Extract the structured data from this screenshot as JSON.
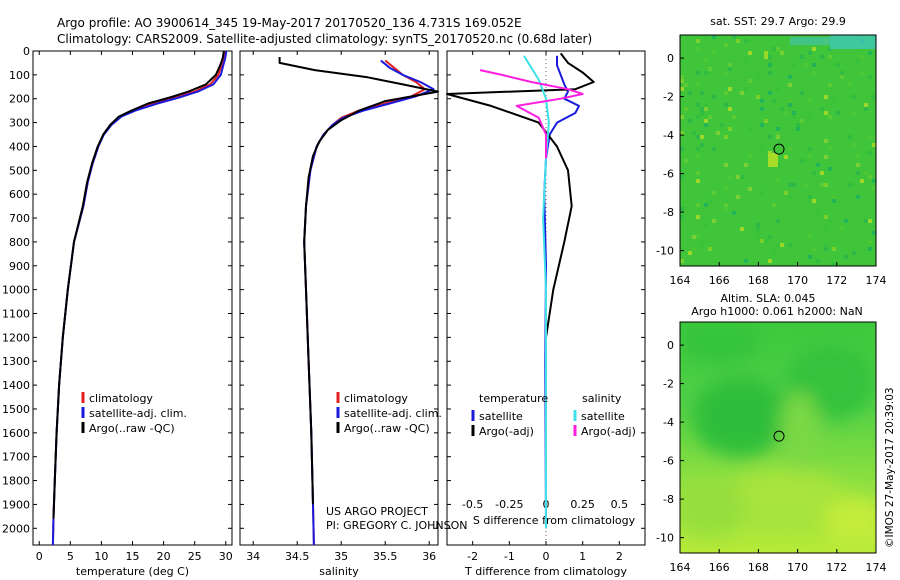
{
  "header": {
    "line1": "Argo profile: AO 3900614_345 19-May-2017 20170520_136 4.731S 169.052E",
    "line2": "Climatology: CARS2009. Satellite-adjusted climatology: synTS_20170520.nc (0.68d later)"
  },
  "colors": {
    "climatology": "#e02020",
    "satellite": "#1a1adf",
    "argo": "#000000",
    "sat_cyan": "#40e0e8",
    "argo_magenta": "#ff1ee0"
  },
  "chart_data": [
    {
      "type": "line",
      "panel": "temperature",
      "xlabel": "temperature (deg C)",
      "xlim": [
        -1,
        31
      ],
      "xticks": [
        0,
        5,
        10,
        15,
        20,
        25,
        30
      ],
      "ylim": [
        2070,
        0
      ],
      "yticks": [
        0,
        100,
        200,
        300,
        400,
        500,
        600,
        700,
        800,
        900,
        1000,
        1100,
        1200,
        1300,
        1400,
        1500,
        1600,
        1700,
        1800,
        1900,
        2000
      ],
      "legend": [
        "climatology",
        "satellite-adj. clim.",
        "Argo(..raw -QC)"
      ],
      "series": [
        {
          "name": "climatology",
          "color": "#e02020",
          "x": [
            29.8,
            29.6,
            29.3,
            28.8,
            27.5,
            25.0,
            22.0,
            18.5,
            15.0,
            13.0,
            11.5,
            10.3,
            9.5,
            8.6,
            7.8,
            7.1,
            5.6,
            4.6,
            3.8,
            3.2,
            2.8,
            2.5,
            2.3,
            2.2
          ],
          "y": [
            0,
            30,
            60,
            100,
            140,
            170,
            195,
            220,
            250,
            275,
            310,
            350,
            400,
            470,
            550,
            650,
            800,
            1000,
            1200,
            1400,
            1600,
            1800,
            1950,
            2070
          ]
        },
        {
          "name": "satellite-adj. clim.",
          "color": "#1a1adf",
          "x": [
            30.1,
            29.9,
            29.6,
            29.2,
            28.0,
            25.5,
            22.5,
            19.0,
            15.4,
            13.2,
            11.6,
            10.4,
            9.5,
            8.6,
            7.8,
            7.1,
            5.6,
            4.6,
            3.8,
            3.2,
            2.8,
            2.5,
            2.3,
            2.2
          ],
          "y": [
            0,
            30,
            60,
            100,
            140,
            170,
            195,
            220,
            250,
            275,
            310,
            350,
            400,
            470,
            550,
            650,
            800,
            1000,
            1200,
            1400,
            1600,
            1800,
            1950,
            2070
          ]
        },
        {
          "name": "Argo(..raw -QC)",
          "color": "#000000",
          "x": [
            29.7,
            29.5,
            29.1,
            28.4,
            26.8,
            24.0,
            21.0,
            17.5,
            14.8,
            12.8,
            11.4,
            10.3,
            9.4,
            8.5,
            7.7,
            7.0,
            5.6,
            4.6,
            3.8,
            3.2,
            2.8,
            2.5,
            2.3
          ],
          "y": [
            0,
            30,
            60,
            100,
            140,
            170,
            195,
            220,
            250,
            275,
            310,
            350,
            400,
            470,
            550,
            650,
            800,
            1000,
            1200,
            1400,
            1600,
            1800,
            1960
          ]
        }
      ]
    },
    {
      "type": "line",
      "panel": "salinity",
      "xlabel": "salinity",
      "xlim": [
        33.85,
        36.1
      ],
      "xticks": [
        34,
        34.5,
        35,
        35.5,
        36
      ],
      "xticklabels": [
        "34",
        "34.5",
        "35",
        "35.5",
        "36"
      ],
      "ylim": [
        2070,
        0
      ],
      "legend": [
        "climatology",
        "satellite-adj. clim.",
        "Argo(..raw -QC)"
      ],
      "series": [
        {
          "name": "climatology",
          "color": "#e02020",
          "x": [
            35.5,
            35.6,
            35.7,
            35.85,
            35.95,
            35.8,
            35.5,
            35.2,
            35.0,
            34.9,
            34.8,
            34.72,
            34.65,
            34.6,
            34.58,
            34.6,
            34.63,
            34.66,
            34.68,
            34.69
          ],
          "y": [
            40,
            70,
            100,
            130,
            160,
            190,
            220,
            250,
            280,
            310,
            350,
            400,
            500,
            650,
            800,
            1000,
            1300,
            1600,
            1900,
            2070
          ]
        },
        {
          "name": "satellite-adj. clim.",
          "color": "#1a1adf",
          "x": [
            35.45,
            35.55,
            35.7,
            35.9,
            36.05,
            35.85,
            35.55,
            35.25,
            35.02,
            34.9,
            34.8,
            34.72,
            34.65,
            34.6,
            34.58,
            34.6,
            34.63,
            34.66,
            34.68,
            34.69
          ],
          "y": [
            40,
            70,
            100,
            130,
            160,
            190,
            220,
            250,
            280,
            310,
            350,
            400,
            500,
            650,
            800,
            1000,
            1300,
            1600,
            1900,
            2070
          ]
        },
        {
          "name": "Argo(..raw -QC)",
          "color": "#000000",
          "x": [
            34.3,
            34.3,
            34.7,
            35.3,
            35.7,
            36.1,
            35.5,
            35.2,
            35.0,
            34.85,
            34.75,
            34.68,
            34.63,
            34.6,
            34.58,
            34.6,
            34.63,
            34.66,
            34.68
          ],
          "y": [
            25,
            50,
            80,
            110,
            140,
            170,
            210,
            250,
            290,
            330,
            380,
            440,
            530,
            650,
            800,
            1000,
            1300,
            1600,
            1900
          ]
        }
      ]
    },
    {
      "type": "line",
      "panel": "difference",
      "xlabel": "T difference from climatology",
      "xlabel2": "S difference from climatology",
      "xlim": [
        -2.7,
        2.7
      ],
      "xticks": [
        -2,
        -1,
        0,
        1,
        2
      ],
      "xticklabels": [
        "-2",
        "-1",
        "0",
        "1",
        "2"
      ],
      "sticks": [
        -0.5,
        -0.25,
        0,
        0.25,
        0.5
      ],
      "sticklabels": [
        "-0.5",
        "-0.25",
        "0",
        "0.25",
        "0.5"
      ],
      "s_scale": 4,
      "ylim": [
        2070,
        0
      ],
      "legend_temperature_title": "temperature",
      "legend_salinity_title": "salinity",
      "legend": [
        "satellite",
        "Argo(-adj)",
        "satellite",
        "Argo(-adj)"
      ],
      "series": [
        {
          "name": "satellite",
          "color": "#1a1adf",
          "quantity": "T",
          "x": [
            0.3,
            0.3,
            0.4,
            0.5,
            0.6,
            0.5,
            0.9,
            0.8,
            0.3,
            0.1,
            0.0,
            -0.05,
            0.0,
            -0.02,
            0.0
          ],
          "y": [
            20,
            60,
            100,
            140,
            170,
            200,
            230,
            260,
            300,
            350,
            450,
            600,
            900,
            1300,
            2000
          ]
        },
        {
          "name": "Argo(-adj)",
          "color": "#000000",
          "quantity": "T",
          "x": [
            0.4,
            0.6,
            1.0,
            1.3,
            0.8,
            -2.7,
            -1.5,
            -0.2,
            0.3,
            0.6,
            0.7,
            0.5,
            0.2,
            0.0
          ],
          "y": [
            10,
            50,
            90,
            130,
            160,
            180,
            230,
            300,
            400,
            500,
            650,
            800,
            1000,
            1200
          ]
        },
        {
          "name": "satellite",
          "color": "#40e0e8",
          "quantity": "S",
          "x": [
            -0.15,
            -0.1,
            -0.05,
            0.0,
            0.02,
            0.0,
            -0.02,
            0.0,
            0.0,
            0.0
          ],
          "y": [
            20,
            70,
            120,
            200,
            300,
            450,
            700,
            1000,
            1500,
            2000
          ]
        },
        {
          "name": "Argo(-adj)",
          "color": "#ff1ee0",
          "quantity": "S",
          "x": [
            -0.45,
            -0.3,
            -0.1,
            0.15,
            0.25,
            0.1,
            -0.2,
            -0.05,
            0.0,
            0.0
          ],
          "y": [
            80,
            100,
            130,
            160,
            180,
            200,
            230,
            280,
            350,
            450
          ]
        }
      ]
    },
    {
      "type": "heatmap",
      "panel": "sst_map",
      "title": "sat. SST: 29.7 Argo: 29.9",
      "xlim": [
        164,
        174
      ],
      "ylim": [
        -10.8,
        1.2
      ],
      "xticks": [
        164,
        166,
        168,
        170,
        172,
        174
      ],
      "yticks": [
        0,
        -2,
        -4,
        -6,
        -8,
        -10
      ],
      "marker": {
        "lon": 169.052,
        "lat": -4.731
      }
    },
    {
      "type": "heatmap",
      "panel": "sla_map",
      "title": "Altim. SLA: 0.045",
      "subtitle": "Argo h1000: 0.061 h2000: NaN",
      "xlim": [
        164,
        174
      ],
      "ylim": [
        -10.8,
        1.2
      ],
      "xticks": [
        164,
        166,
        168,
        170,
        172,
        174
      ],
      "yticks": [
        0,
        -2,
        -4,
        -6,
        -8,
        -10
      ],
      "marker": {
        "lon": 169.052,
        "lat": -4.731
      }
    }
  ],
  "footer": {
    "project_line1": "US ARGO PROJECT",
    "project_line2": "PI: GREGORY C. JOHNSON",
    "credit": "©IMOS 27-May-2017 20:39:03"
  }
}
